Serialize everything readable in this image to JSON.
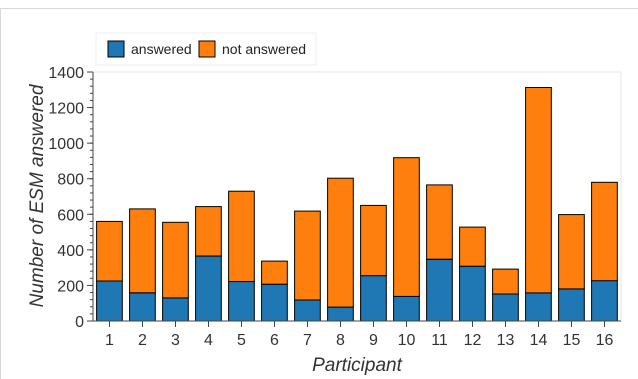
{
  "chart_data": {
    "type": "bar",
    "stacked": true,
    "title": "",
    "xlabel": "Participant",
    "ylabel": "Number of ESM answered",
    "categories": [
      "1",
      "2",
      "3",
      "4",
      "5",
      "6",
      "7",
      "8",
      "9",
      "10",
      "11",
      "12",
      "13",
      "14",
      "15",
      "16"
    ],
    "series": [
      {
        "name": "answered",
        "color": "#1f77b4",
        "values": [
          225,
          158,
          130,
          365,
          222,
          207,
          118,
          78,
          255,
          138,
          347,
          308,
          152,
          158,
          180,
          227
        ]
      },
      {
        "name": "not answered",
        "color": "#ff7f0e",
        "values": [
          335,
          472,
          425,
          278,
          508,
          130,
          500,
          725,
          395,
          780,
          418,
          220,
          140,
          1155,
          418,
          553
        ]
      }
    ],
    "yticks": [
      0,
      200,
      400,
      600,
      800,
      1000,
      1200,
      1400
    ],
    "ylim": [
      0,
      1400
    ],
    "grid": false,
    "legend": "top-left"
  }
}
